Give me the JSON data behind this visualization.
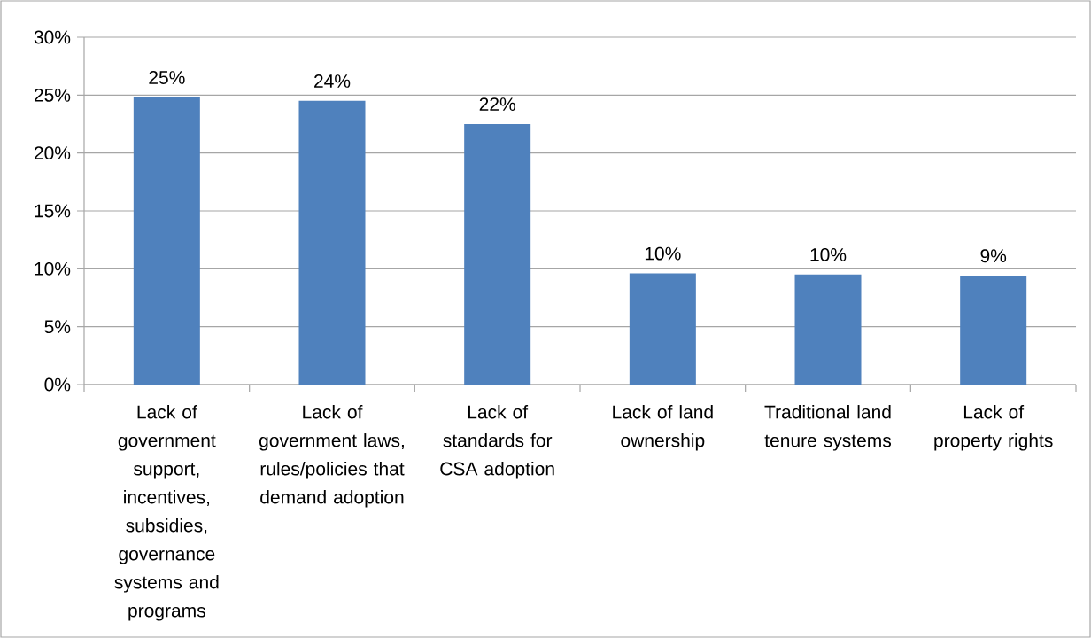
{
  "chart_data": {
    "type": "bar",
    "categories": [
      "Lack of government support, incentives, subsidies, governance systems and programs",
      "Lack of government laws, rules/policies that demand adoption",
      "Lack of standards for CSA adoption",
      "Lack of land ownership",
      "Traditional land tenure systems",
      "Lack of property rights"
    ],
    "values": [
      24.8,
      24.5,
      22.5,
      9.6,
      9.5,
      9.4
    ],
    "value_labels": [
      "25%",
      "24%",
      "22%",
      "10%",
      "10%",
      "9%"
    ],
    "color": "#4f81bd",
    "ylim": [
      0,
      30
    ],
    "yticks": [
      {
        "value": 0,
        "label": "0%"
      },
      {
        "value": 5,
        "label": "5%"
      },
      {
        "value": 10,
        "label": "10%"
      },
      {
        "value": 15,
        "label": "15%"
      },
      {
        "value": 20,
        "label": "20%"
      },
      {
        "value": 25,
        "label": "25%"
      },
      {
        "value": 30,
        "label": "30%"
      }
    ],
    "grid": "y"
  }
}
